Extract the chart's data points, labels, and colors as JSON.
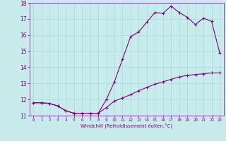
{
  "xlabel": "Windchill (Refroidissement éolien,°C)",
  "background_color": "#c8ecec",
  "line_color": "#800080",
  "grid_color": "#a8d8d8",
  "xlim": [
    -0.5,
    23.5
  ],
  "ylim": [
    11,
    18
  ],
  "yticks": [
    11,
    12,
    13,
    14,
    15,
    16,
    17,
    18
  ],
  "xticks": [
    0,
    1,
    2,
    3,
    4,
    5,
    6,
    7,
    8,
    9,
    10,
    11,
    12,
    13,
    14,
    15,
    16,
    17,
    18,
    19,
    20,
    21,
    22,
    23
  ],
  "upper_x": [
    0,
    1,
    2,
    3,
    4,
    5,
    6,
    7,
    8,
    9,
    10,
    11,
    12,
    13,
    14,
    15,
    16,
    17,
    18,
    19,
    20,
    21,
    22,
    23
  ],
  "upper_y": [
    11.8,
    11.8,
    11.75,
    11.6,
    11.3,
    11.15,
    11.15,
    11.15,
    11.15,
    12.0,
    13.1,
    14.5,
    15.9,
    16.2,
    16.8,
    17.4,
    17.35,
    17.8,
    17.4,
    17.1,
    16.65,
    17.05,
    16.85,
    14.9
  ],
  "lower_x": [
    0,
    1,
    2,
    3,
    4,
    5,
    6,
    7,
    8,
    9,
    10,
    11,
    12,
    13,
    14,
    15,
    16,
    17,
    18,
    19,
    20,
    21,
    22,
    23
  ],
  "lower_y": [
    11.8,
    11.8,
    11.75,
    11.6,
    11.3,
    11.15,
    11.15,
    11.15,
    11.15,
    11.5,
    11.9,
    12.1,
    12.3,
    12.55,
    12.75,
    12.95,
    13.1,
    13.25,
    13.4,
    13.5,
    13.55,
    13.6,
    13.65,
    13.65
  ]
}
